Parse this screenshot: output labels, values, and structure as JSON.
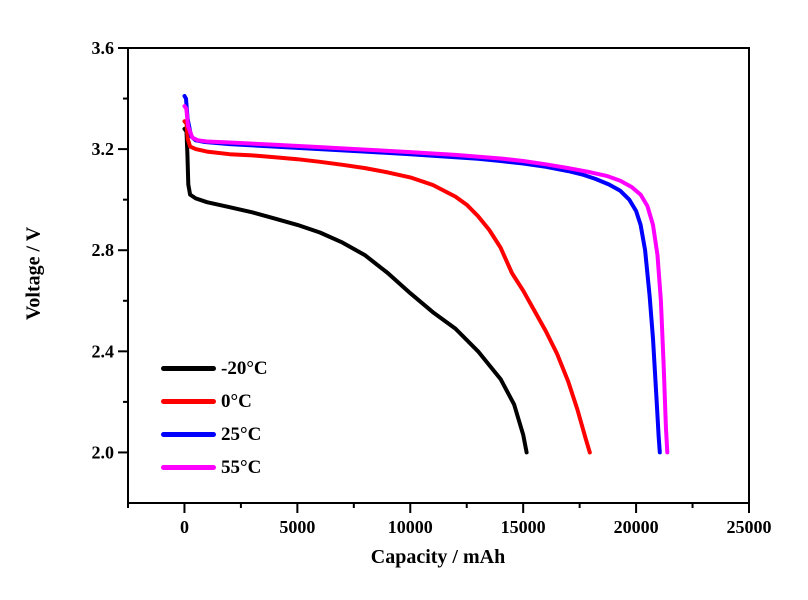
{
  "figure": {
    "background": "#ffffff",
    "text_color": "#000000"
  },
  "chart_data": {
    "type": "line",
    "title": "",
    "xlabel": "Capacity / mAh",
    "ylabel": "Voltage / V",
    "xlim": [
      -2500,
      25000
    ],
    "ylim": [
      1.8,
      3.6
    ],
    "grid": false,
    "frame": "box",
    "legend_position": "inside-bottom-left",
    "xticks": {
      "major": [
        0,
        5000,
        10000,
        15000,
        20000,
        25000
      ],
      "labels": [
        "0",
        "5000",
        "10000",
        "15000",
        "20000",
        "25000"
      ],
      "minor": [
        -2500,
        2500,
        7500,
        12500,
        17500,
        22500
      ]
    },
    "yticks": {
      "major": [
        3.6,
        3.2,
        2.8,
        2.4,
        2.0
      ],
      "labels": [
        "3.6",
        "3.2",
        "2.8",
        "2.4",
        "2.0"
      ],
      "minor": [
        3.4,
        3.0,
        2.6,
        2.2
      ]
    },
    "series": [
      {
        "name": "-20°C",
        "color": "#000000",
        "points": [
          [
            0,
            3.28
          ],
          [
            90,
            3.27
          ],
          [
            130,
            3.18
          ],
          [
            170,
            3.06
          ],
          [
            250,
            3.02
          ],
          [
            500,
            3.005
          ],
          [
            1000,
            2.99
          ],
          [
            2000,
            2.97
          ],
          [
            3000,
            2.95
          ],
          [
            4000,
            2.925
          ],
          [
            5000,
            2.9
          ],
          [
            6000,
            2.87
          ],
          [
            7000,
            2.83
          ],
          [
            8000,
            2.78
          ],
          [
            9000,
            2.71
          ],
          [
            10000,
            2.63
          ],
          [
            11000,
            2.555
          ],
          [
            12000,
            2.49
          ],
          [
            13000,
            2.4
          ],
          [
            14000,
            2.29
          ],
          [
            14600,
            2.19
          ],
          [
            15000,
            2.07
          ],
          [
            15150,
            2.0
          ]
        ]
      },
      {
        "name": "0°C",
        "color": "#ff0000",
        "points": [
          [
            0,
            3.31
          ],
          [
            90,
            3.3
          ],
          [
            150,
            3.24
          ],
          [
            250,
            3.21
          ],
          [
            500,
            3.2
          ],
          [
            1000,
            3.19
          ],
          [
            2000,
            3.18
          ],
          [
            3000,
            3.175
          ],
          [
            4000,
            3.168
          ],
          [
            5000,
            3.16
          ],
          [
            6000,
            3.15
          ],
          [
            7000,
            3.138
          ],
          [
            8000,
            3.125
          ],
          [
            9000,
            3.108
          ],
          [
            10000,
            3.088
          ],
          [
            11000,
            3.058
          ],
          [
            12000,
            3.012
          ],
          [
            12500,
            2.98
          ],
          [
            13000,
            2.935
          ],
          [
            13500,
            2.88
          ],
          [
            14000,
            2.81
          ],
          [
            14500,
            2.71
          ],
          [
            15000,
            2.64
          ],
          [
            15500,
            2.56
          ],
          [
            16000,
            2.48
          ],
          [
            16500,
            2.39
          ],
          [
            17000,
            2.28
          ],
          [
            17400,
            2.17
          ],
          [
            17750,
            2.06
          ],
          [
            17950,
            2.0
          ]
        ]
      },
      {
        "name": "25°C",
        "color": "#0000ff",
        "points": [
          [
            0,
            3.41
          ],
          [
            70,
            3.4
          ],
          [
            140,
            3.32
          ],
          [
            300,
            3.25
          ],
          [
            500,
            3.235
          ],
          [
            900,
            3.228
          ],
          [
            2000,
            3.22
          ],
          [
            4000,
            3.21
          ],
          [
            6000,
            3.2
          ],
          [
            8000,
            3.19
          ],
          [
            10000,
            3.18
          ],
          [
            12000,
            3.168
          ],
          [
            13000,
            3.162
          ],
          [
            14000,
            3.153
          ],
          [
            15000,
            3.143
          ],
          [
            16000,
            3.13
          ],
          [
            17000,
            3.113
          ],
          [
            17600,
            3.1
          ],
          [
            18200,
            3.082
          ],
          [
            18800,
            3.06
          ],
          [
            19300,
            3.035
          ],
          [
            19700,
            3.0
          ],
          [
            20000,
            2.955
          ],
          [
            20200,
            2.9
          ],
          [
            20400,
            2.8
          ],
          [
            20600,
            2.62
          ],
          [
            20750,
            2.45
          ],
          [
            20900,
            2.22
          ],
          [
            21000,
            2.06
          ],
          [
            21050,
            2.0
          ]
        ]
      },
      {
        "name": "55°C",
        "color": "#ff00ff",
        "points": [
          [
            0,
            3.37
          ],
          [
            80,
            3.36
          ],
          [
            160,
            3.29
          ],
          [
            350,
            3.245
          ],
          [
            600,
            3.235
          ],
          [
            1000,
            3.23
          ],
          [
            2000,
            3.226
          ],
          [
            4000,
            3.217
          ],
          [
            6000,
            3.208
          ],
          [
            8000,
            3.198
          ],
          [
            10000,
            3.188
          ],
          [
            12000,
            3.177
          ],
          [
            14000,
            3.163
          ],
          [
            15000,
            3.153
          ],
          [
            16000,
            3.14
          ],
          [
            17000,
            3.125
          ],
          [
            18000,
            3.108
          ],
          [
            18700,
            3.094
          ],
          [
            19300,
            3.075
          ],
          [
            19800,
            3.05
          ],
          [
            20200,
            3.02
          ],
          [
            20500,
            2.975
          ],
          [
            20750,
            2.9
          ],
          [
            20950,
            2.78
          ],
          [
            21100,
            2.6
          ],
          [
            21220,
            2.35
          ],
          [
            21320,
            2.1
          ],
          [
            21380,
            2.0
          ]
        ]
      }
    ]
  }
}
